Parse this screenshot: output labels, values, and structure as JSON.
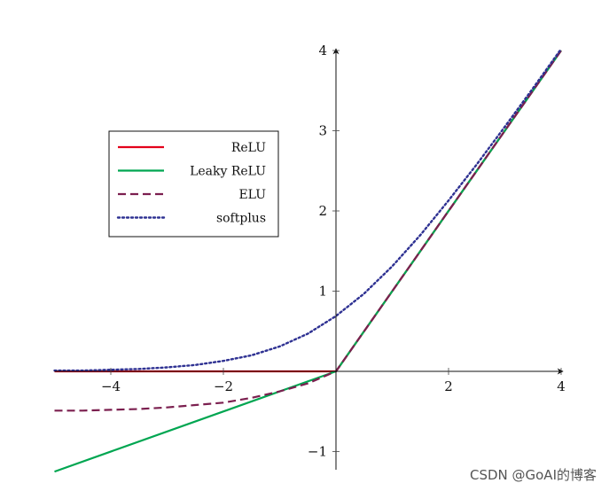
{
  "chart_data": {
    "type": "line",
    "xlim": [
      -5,
      4
    ],
    "ylim": [
      -1.25,
      4
    ],
    "x_ticks": [
      {
        "value": -4,
        "label": "−4"
      },
      {
        "value": -2,
        "label": "−2"
      },
      {
        "value": 2,
        "label": "2"
      },
      {
        "value": 4,
        "label": "4"
      }
    ],
    "y_ticks": [
      {
        "value": -1,
        "label": "−1"
      },
      {
        "value": 1,
        "label": "1"
      },
      {
        "value": 2,
        "label": "2"
      },
      {
        "value": 3,
        "label": "3"
      },
      {
        "value": 4,
        "label": "4"
      }
    ],
    "grid": false,
    "legend_position": "upper-left",
    "series": [
      {
        "name": "ReLU",
        "color": "#e3001b",
        "dash": "solid",
        "points": [
          [
            -5,
            0
          ],
          [
            0,
            0
          ],
          [
            4,
            4
          ]
        ]
      },
      {
        "name": "Leaky ReLU",
        "color": "#00a651",
        "dash": "solid",
        "points": [
          [
            -5,
            -1.25
          ],
          [
            0,
            0
          ],
          [
            4,
            4
          ]
        ]
      },
      {
        "name": "ELU",
        "color": "#7b1f4f",
        "dash": "dashed",
        "points": [
          [
            -5,
            -0.49
          ],
          [
            -4.5,
            -0.49
          ],
          [
            -4,
            -0.48
          ],
          [
            -3.5,
            -0.47
          ],
          [
            -3,
            -0.45
          ],
          [
            -2.5,
            -0.42
          ],
          [
            -2,
            -0.39
          ],
          [
            -1.5,
            -0.33
          ],
          [
            -1,
            -0.25
          ],
          [
            -0.5,
            -0.15
          ],
          [
            0,
            0
          ],
          [
            4,
            4
          ]
        ]
      },
      {
        "name": "softplus",
        "color": "#2e3192",
        "dash": "dotted",
        "points": [
          [
            -5,
            0.01
          ],
          [
            -4.5,
            0.01
          ],
          [
            -4,
            0.02
          ],
          [
            -3.5,
            0.03
          ],
          [
            -3,
            0.05
          ],
          [
            -2.5,
            0.08
          ],
          [
            -2,
            0.13
          ],
          [
            -1.5,
            0.2
          ],
          [
            -1,
            0.31
          ],
          [
            -0.5,
            0.47
          ],
          [
            0,
            0.69
          ],
          [
            0.5,
            0.97
          ],
          [
            1,
            1.31
          ],
          [
            1.5,
            1.7
          ],
          [
            2,
            2.13
          ],
          [
            2.5,
            2.58
          ],
          [
            3,
            3.05
          ],
          [
            3.5,
            3.53
          ],
          [
            4,
            4.02
          ]
        ]
      }
    ]
  },
  "watermark": "CSDN @GoAI的博客"
}
